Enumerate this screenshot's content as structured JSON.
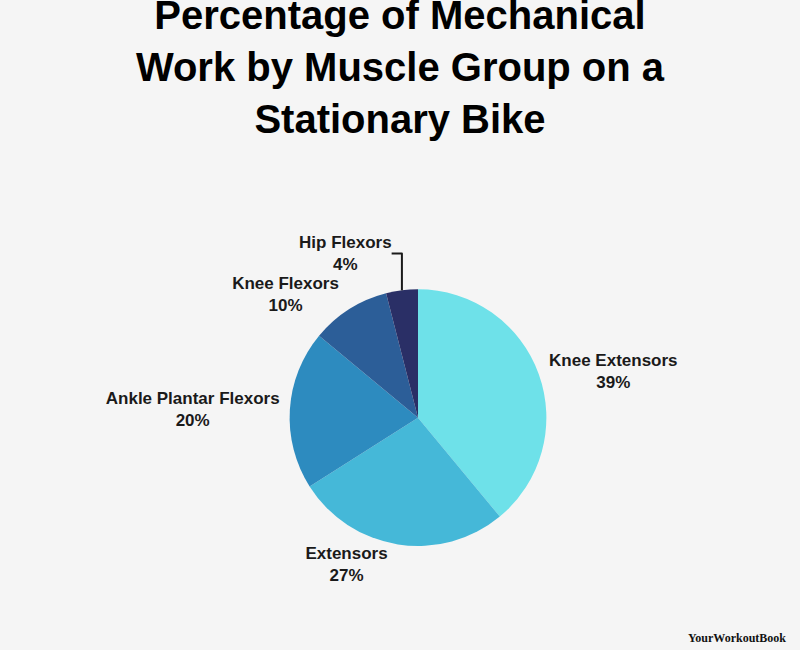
{
  "chart_data": {
    "type": "pie",
    "title": "Percentage of Mechanical Work by Muscle Group on a Stationary Bike",
    "categories": [
      "Knee Extensors",
      "Extensors",
      "Ankle Plantar Flexors",
      "Knee Flexors",
      "Hip Flexors"
    ],
    "values": [
      39,
      27,
      20,
      10,
      4
    ],
    "value_labels": [
      "39%",
      "27%",
      "20%",
      "10%",
      "4%"
    ],
    "colors": [
      "#6ee1e9",
      "#45b8d8",
      "#2d8bbf",
      "#2c5e98",
      "#2a2f66"
    ],
    "data_labels": true,
    "legend": "none",
    "annotations": [
      "YourWorkoutBook"
    ]
  }
}
